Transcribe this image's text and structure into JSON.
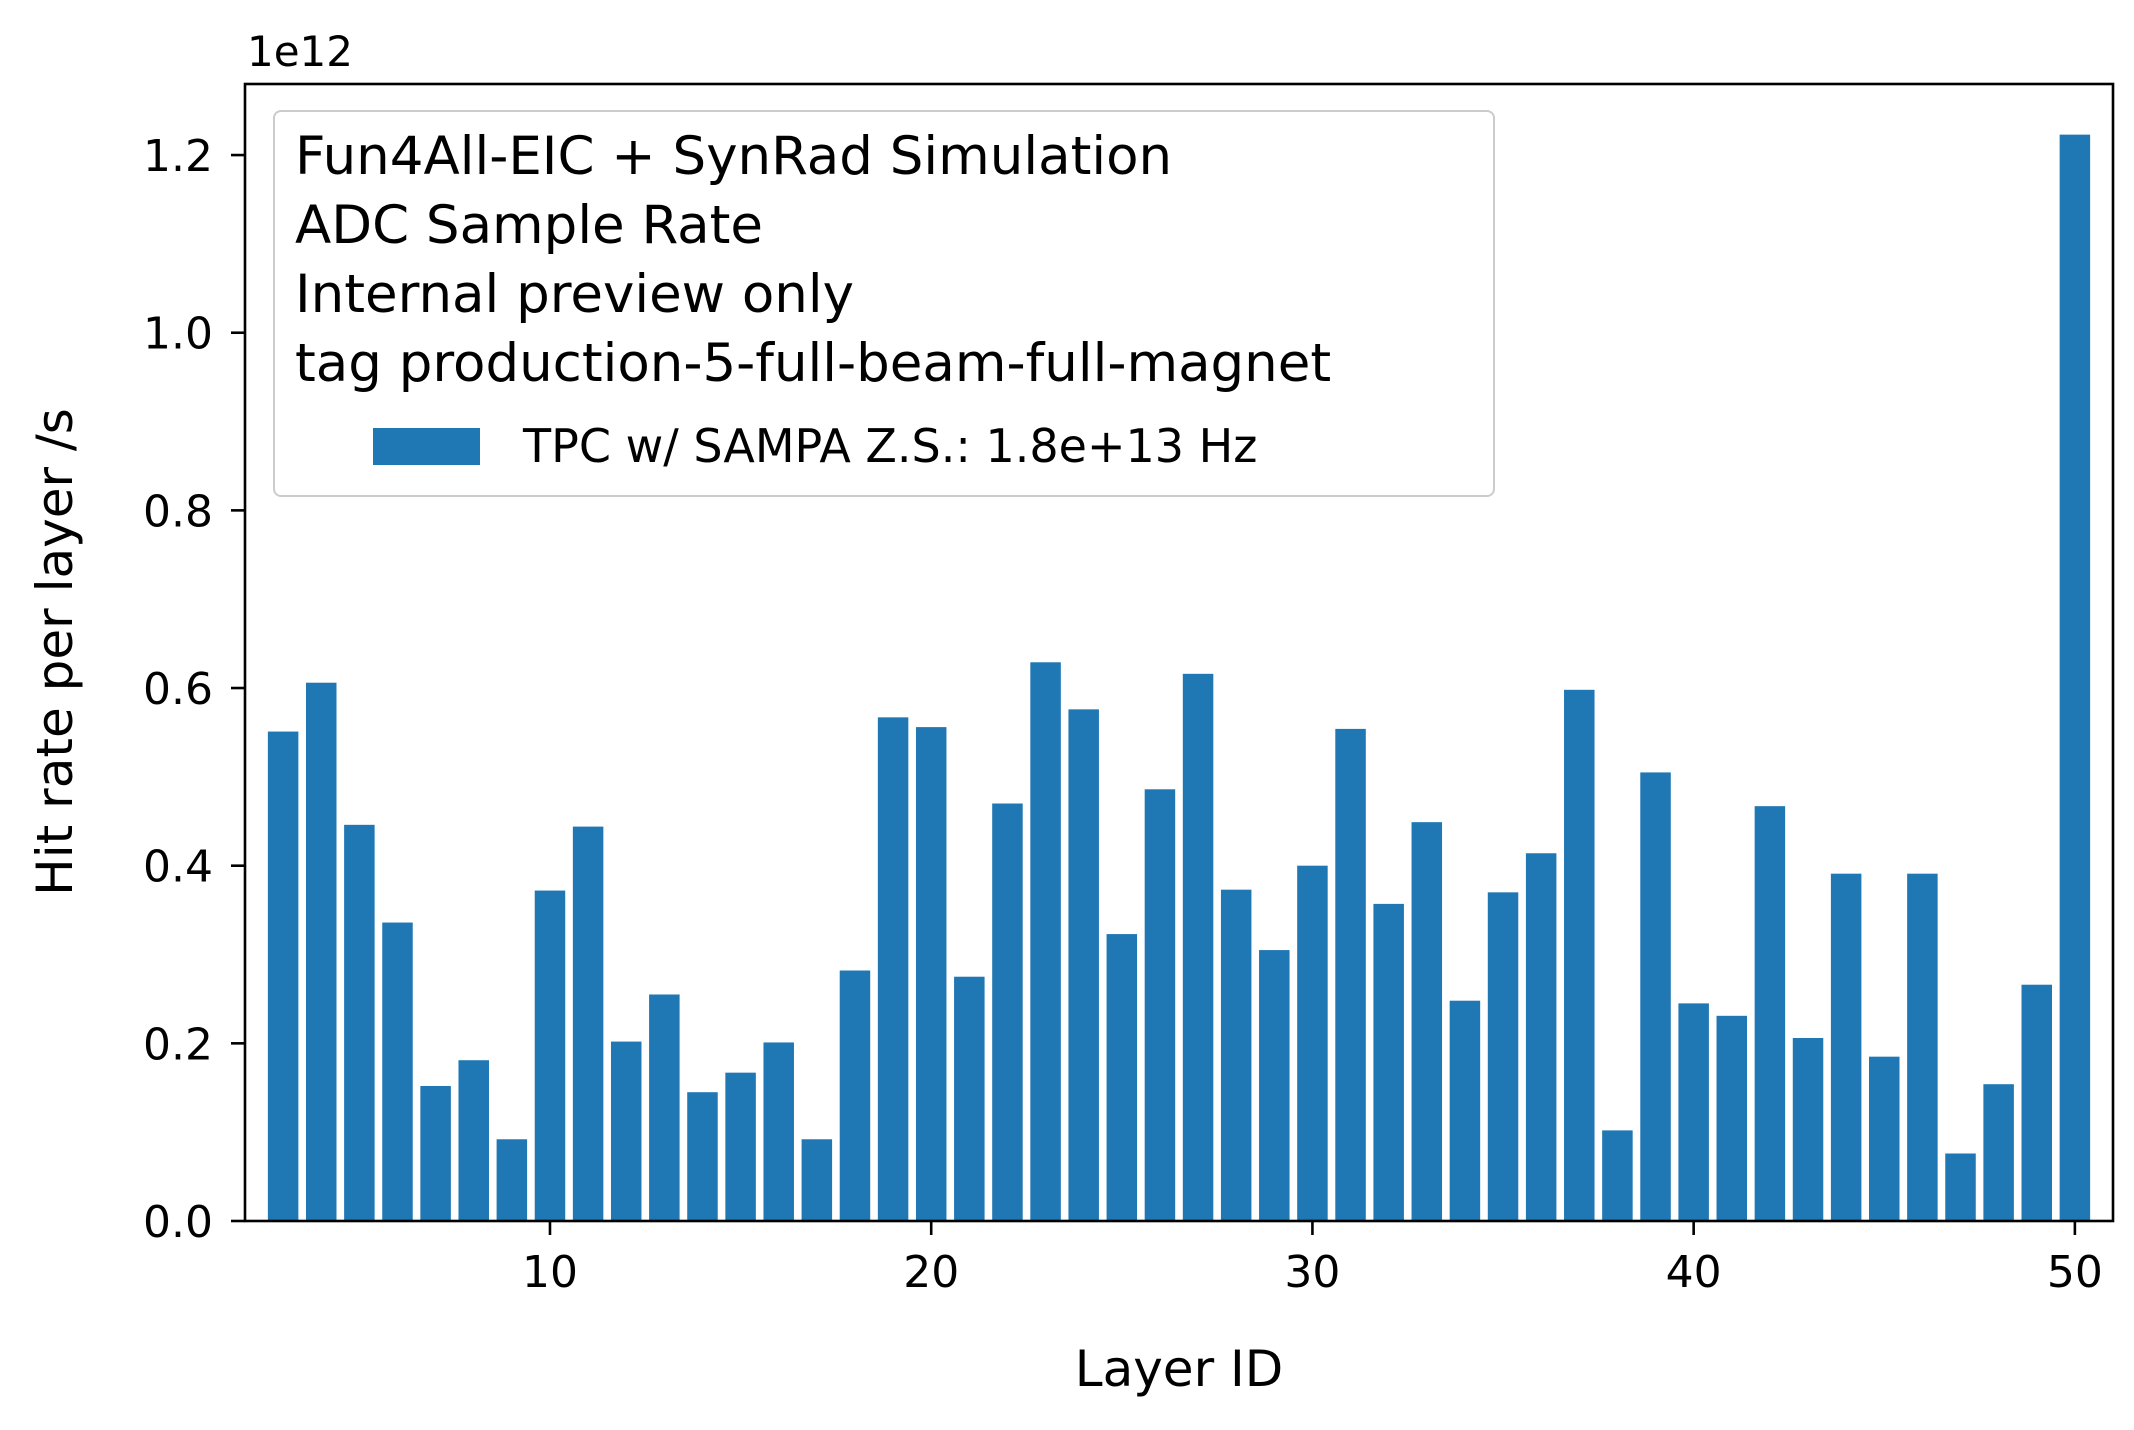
{
  "chart_data": {
    "type": "bar",
    "title": "",
    "xlabel": "Layer ID",
    "ylabel": "Hit rate per layer /s",
    "y_multiplier": "1e12",
    "xlim": [
      2,
      51
    ],
    "ylim": [
      0,
      1.28
    ],
    "xticks": [
      10,
      20,
      30,
      40,
      50
    ],
    "yticks": [
      0.0,
      0.2,
      0.4,
      0.6,
      0.8,
      1.0,
      1.2
    ],
    "grid": false,
    "legend": {
      "placement": "top-left",
      "header_lines": [
        "Fun4All-EIC + SynRad Simulation",
        "ADC Sample Rate",
        "Internal preview only",
        "tag production-5-full-beam-full-magnet"
      ],
      "entries": [
        {
          "label": "TPC w/ SAMPA Z.S.: 1.8e+13 Hz",
          "color": "#1f77b4"
        }
      ]
    },
    "bar_color": "#1f77b4",
    "series": [
      {
        "x": [
          3,
          4,
          5,
          6,
          7,
          8,
          9,
          10,
          11,
          12,
          13,
          14,
          15,
          16,
          17,
          18,
          19,
          20,
          21,
          22,
          23,
          24,
          25,
          26,
          27,
          28,
          29,
          30,
          31,
          32,
          33,
          34,
          35,
          36,
          37,
          38,
          39,
          40,
          41,
          42,
          43,
          44,
          45,
          46,
          47,
          48,
          49,
          50
        ],
        "values": [
          0.551,
          0.606,
          0.446,
          0.336,
          0.152,
          0.181,
          0.092,
          0.372,
          0.444,
          0.202,
          0.255,
          0.145,
          0.167,
          0.201,
          0.092,
          0.282,
          0.567,
          0.556,
          0.275,
          0.47,
          0.629,
          0.576,
          0.323,
          0.486,
          0.616,
          0.373,
          0.305,
          0.4,
          0.554,
          0.357,
          0.449,
          0.248,
          0.37,
          0.414,
          0.598,
          0.102,
          0.505,
          0.245,
          0.231,
          0.467,
          0.206,
          0.391,
          0.185,
          0.391,
          0.076,
          0.154,
          0.266,
          1.223
        ]
      }
    ]
  }
}
